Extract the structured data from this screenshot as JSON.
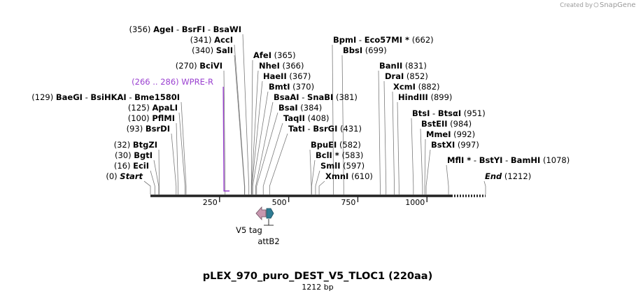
{
  "title": "pLEX_970_puro_DEST_V5_TLOC1 (220aa)",
  "subtitle": "1212 bp",
  "credit": {
    "prefix": "Created by",
    "brand": "SnapGene",
    "icon": "snapgene-logo-icon"
  },
  "sequence_length": 1212,
  "axis_ticks": [
    "250",
    "500",
    "750",
    "1000"
  ],
  "tick_positions": [
    250,
    500,
    750,
    1000
  ],
  "primer": {
    "label": "WPRE-R",
    "range": "(266 .. 286)",
    "start": 266,
    "end": 286,
    "color": "#9a40d0"
  },
  "features": [
    {
      "name": "V5 tag",
      "color": "#c796ae"
    },
    {
      "name": "attB2",
      "color": "#2f7c94"
    }
  ],
  "rows": [
    {
      "sites": [
        {
          "name": "AgeI",
          "pos": "(356)"
        },
        {
          "name": "BsrFI"
        },
        {
          "name": "BsaWI"
        }
      ]
    },
    {
      "sites": [
        {
          "name": "AccI",
          "pos": "(341)"
        }
      ]
    },
    {
      "sites": [
        {
          "name": "SalI",
          "pos": "(340)"
        }
      ]
    },
    {
      "sites": [
        {
          "name": "AfeI",
          "pos": "(365)"
        }
      ]
    },
    {
      "sites": [
        {
          "name": "BciVI",
          "pos": "(270)"
        }
      ]
    },
    {
      "sites": [
        {
          "name": "NheI",
          "pos": "(366)"
        }
      ]
    },
    {
      "sites": [
        {
          "name": "HaeII",
          "pos": "(367)"
        }
      ]
    },
    {
      "sites": [
        {
          "name": "BmtI",
          "pos": "(370)"
        }
      ]
    },
    {
      "sites": [
        {
          "name": "BaeGI",
          "pos": "(129)"
        },
        {
          "name": "BsiHKAI"
        },
        {
          "name": "Bme1580I"
        }
      ]
    },
    {
      "sites": [
        {
          "name": "BsaAI"
        },
        {
          "name": "SnaBI",
          "pos": "(381)"
        }
      ]
    },
    {
      "sites": [
        {
          "name": "ApaLI",
          "pos": "(125)"
        }
      ]
    },
    {
      "sites": [
        {
          "name": "BsaI",
          "pos": "(384)"
        }
      ]
    },
    {
      "sites": [
        {
          "name": "PflMI",
          "pos": "(100)"
        }
      ]
    },
    {
      "sites": [
        {
          "name": "TaqII",
          "pos": "(408)"
        }
      ]
    },
    {
      "sites": [
        {
          "name": "BsrDI",
          "pos": "(93)"
        }
      ]
    },
    {
      "sites": [
        {
          "name": "TatI"
        },
        {
          "name": "BsrGI",
          "pos": "(431)"
        }
      ]
    },
    {
      "sites": [
        {
          "name": "BtgZI",
          "pos": "(32)"
        }
      ]
    },
    {
      "sites": [
        {
          "name": "BgtI",
          "pos": "(30)"
        }
      ]
    },
    {
      "sites": [
        {
          "name": "EciI",
          "pos": "(16)"
        }
      ]
    },
    {
      "sites": [
        {
          "name": "Start",
          "pos": "(0)"
        }
      ]
    },
    {
      "sites": [
        {
          "name": "BpmI"
        },
        {
          "name": "Eco57MI *",
          "pos": "(662)"
        }
      ]
    },
    {
      "sites": [
        {
          "name": "BbsI",
          "pos": "(699)"
        }
      ]
    },
    {
      "sites": [
        {
          "name": "BanII",
          "pos": "(831)"
        }
      ]
    },
    {
      "sites": [
        {
          "name": "DraI",
          "pos": "(852)"
        }
      ]
    },
    {
      "sites": [
        {
          "name": "XcmI",
          "pos": "(882)"
        }
      ]
    },
    {
      "sites": [
        {
          "name": "HindIII",
          "pos": "(899)"
        }
      ]
    },
    {
      "sites": [
        {
          "name": "BtsI"
        },
        {
          "name": "BtsαI",
          "pos": "(951)"
        }
      ]
    },
    {
      "sites": [
        {
          "name": "BstEII",
          "pos": "(984)"
        }
      ]
    },
    {
      "sites": [
        {
          "name": "MmeI",
          "pos": "(992)"
        }
      ]
    },
    {
      "sites": [
        {
          "name": "BstXI",
          "pos": "(997)"
        }
      ]
    },
    {
      "sites": [
        {
          "name": "BpuEI",
          "pos": "(582)"
        }
      ]
    },
    {
      "sites": [
        {
          "name": "BclI *",
          "pos": "(583)"
        }
      ]
    },
    {
      "sites": [
        {
          "name": "SmlI",
          "pos": "(597)"
        }
      ]
    },
    {
      "sites": [
        {
          "name": "XmnI",
          "pos": "(610)"
        }
      ]
    },
    {
      "sites": [
        {
          "name": "MflI *"
        },
        {
          "name": "BstYI"
        },
        {
          "name": "BamHI",
          "pos": "(1078)"
        }
      ]
    },
    {
      "sites": [
        {
          "name": "End",
          "pos": "(1212)"
        }
      ]
    }
  ]
}
